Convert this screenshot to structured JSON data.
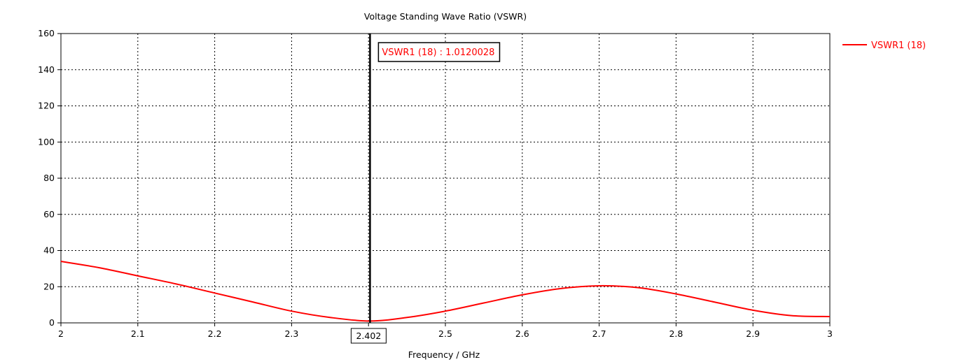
{
  "chart_data": {
    "type": "line",
    "title": "Voltage Standing Wave Ratio (VSWR)",
    "xlabel": "Frequency / GHz",
    "ylabel": "",
    "xlim": [
      2,
      3
    ],
    "ylim": [
      0,
      160
    ],
    "x_ticks": [
      "2",
      "2.1",
      "2.2",
      "2.3",
      "2.4",
      "2.5",
      "2.6",
      "2.7",
      "2.8",
      "2.9",
      "3"
    ],
    "y_ticks": [
      "0",
      "20",
      "40",
      "60",
      "80",
      "100",
      "120",
      "140",
      "160"
    ],
    "grid": true,
    "legend_position": "top-right",
    "series": [
      {
        "name": "VSWR1 (18)",
        "color": "#ff0000",
        "x": [
          2.0,
          2.05,
          2.1,
          2.15,
          2.2,
          2.25,
          2.3,
          2.35,
          2.402,
          2.45,
          2.5,
          2.55,
          2.6,
          2.65,
          2.7,
          2.75,
          2.8,
          2.85,
          2.9,
          2.95,
          3.0
        ],
        "y": [
          34,
          30.5,
          26,
          21.5,
          16.5,
          11.5,
          6.5,
          3,
          1.012,
          3,
          6.5,
          11,
          15.5,
          19,
          20.5,
          19.5,
          16,
          11.5,
          7,
          4,
          3.5
        ]
      }
    ],
    "cursor": {
      "x": 2.402,
      "x_label": "2.402",
      "marker_label": "VSWR1 (18) : 1.0120028",
      "marker_color": "#ff0000"
    }
  }
}
